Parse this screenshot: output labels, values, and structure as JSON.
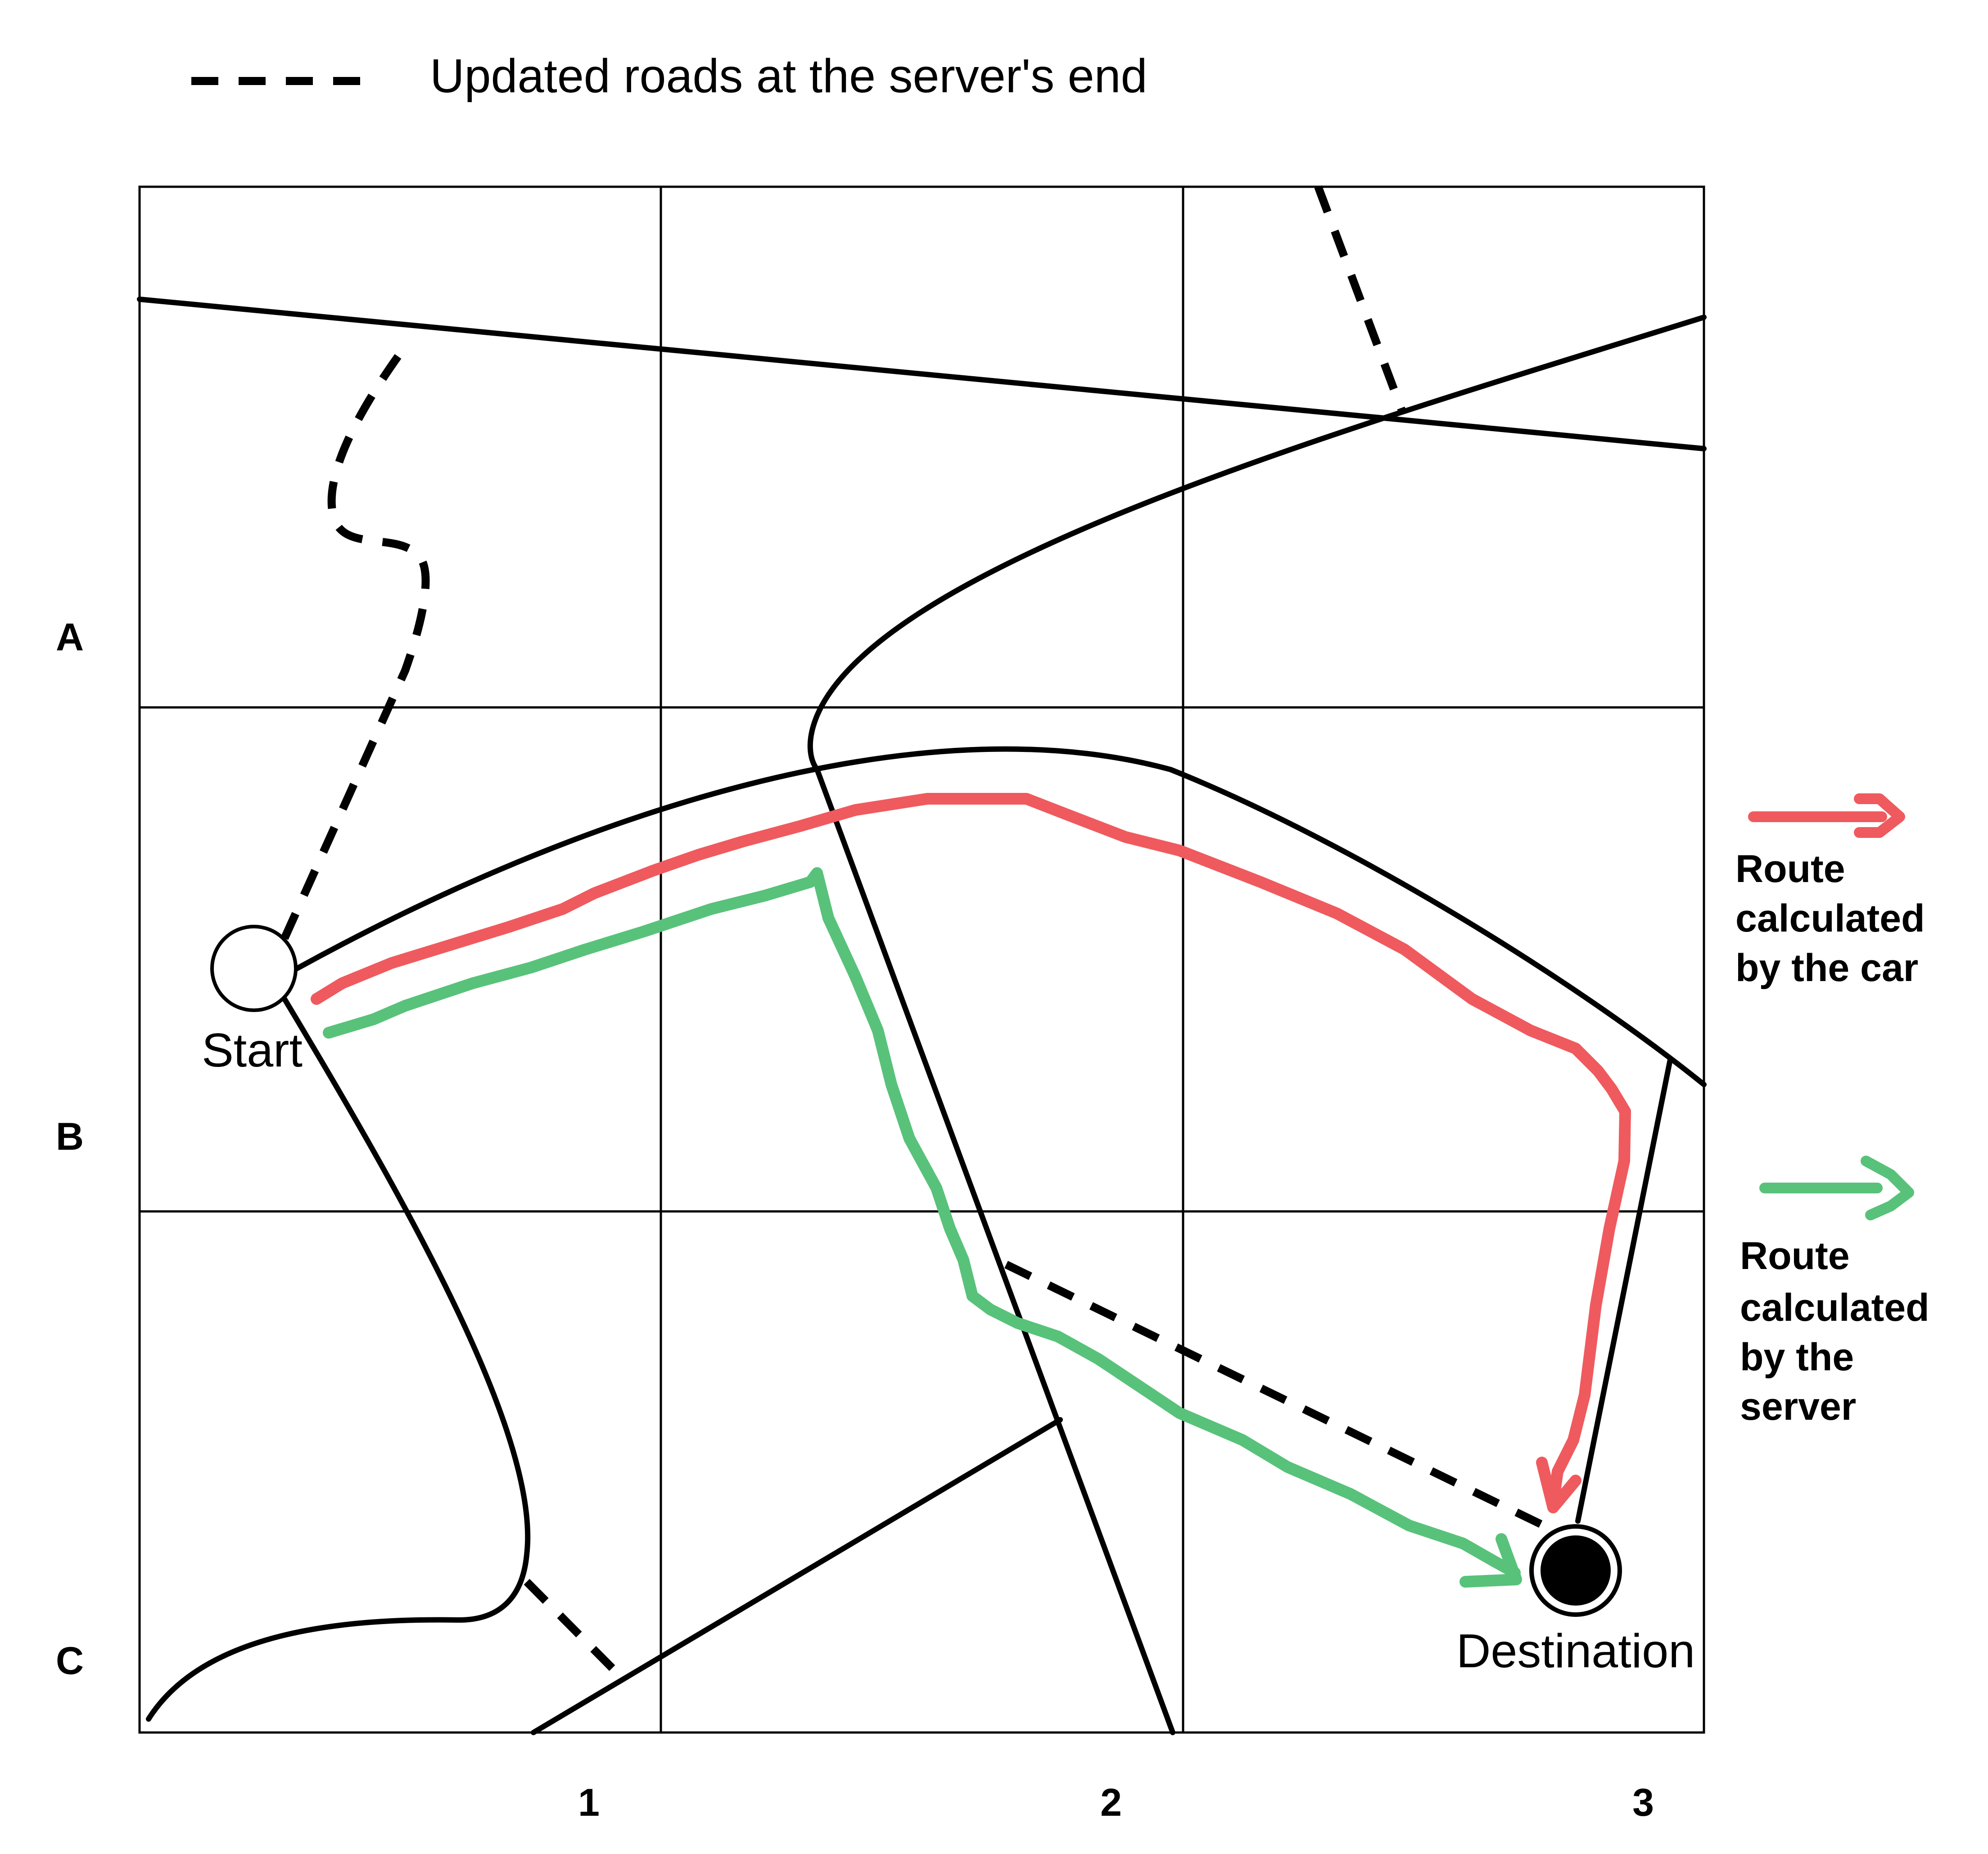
{
  "legend_top": {
    "label": "Updated roads at the server's end"
  },
  "grid": {
    "row_labels": [
      "A",
      "B",
      "C"
    ],
    "col_labels": [
      "1",
      "2",
      "3"
    ]
  },
  "nodes": {
    "start_label": "Start",
    "destination_label": "Destination"
  },
  "legend_routes": [
    {
      "lines": [
        "Route",
        "calculated",
        "by the car"
      ],
      "color": "#ef5a5e"
    },
    {
      "lines": [
        "Route",
        "calculated",
        "by the",
        "server"
      ],
      "color": "#58c27a"
    }
  ],
  "colors": {
    "road": "#000000",
    "car_route": "#ef5a5e",
    "server_route": "#58c27a",
    "background": "#ffffff"
  }
}
